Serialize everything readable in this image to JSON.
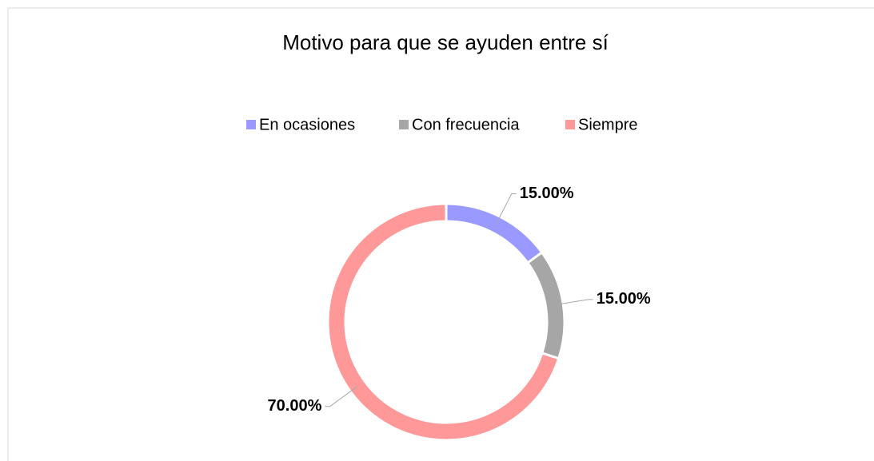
{
  "chart_data": {
    "type": "donut",
    "title": "Motivo para que se ayuden entre sí",
    "categories": [
      "En ocasiones",
      "Con frecuencia",
      "Siempre"
    ],
    "values": [
      15,
      15,
      70
    ],
    "value_labels": [
      "15.00%",
      "15.00%",
      "70.00%"
    ],
    "colors": [
      "#9999ff",
      "#a6a6a6",
      "#ff9999"
    ],
    "legend": "top"
  }
}
